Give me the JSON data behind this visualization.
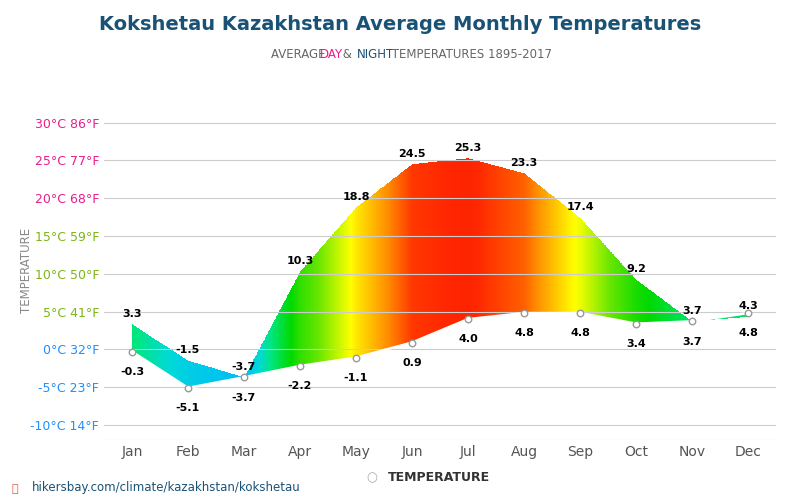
{
  "title": "Kokshetau Kazakhstan Average Monthly Temperatures",
  "ylabel": "TEMPERATURE",
  "months": [
    "Jan",
    "Feb",
    "Mar",
    "Apr",
    "May",
    "Jun",
    "Jul",
    "Aug",
    "Sep",
    "Oct",
    "Nov",
    "Dec"
  ],
  "day_temps": [
    3.3,
    -1.5,
    -3.7,
    10.3,
    18.8,
    24.5,
    25.3,
    23.3,
    17.4,
    9.2,
    3.7,
    4.3
  ],
  "night_temps": [
    -0.3,
    -5.1,
    -3.7,
    -2.2,
    -1.1,
    0.9,
    4.0,
    4.8,
    4.8,
    3.4,
    3.7,
    4.8
  ],
  "yticks_c": [
    30,
    25,
    20,
    15,
    10,
    5,
    0,
    -5,
    -10
  ],
  "yticks_f": [
    86,
    77,
    68,
    59,
    50,
    41,
    32,
    23,
    14
  ],
  "ytick_colors_warm": [
    "#e91e8c",
    "#e91e8c",
    "#e91e8c"
  ],
  "ytick_colors_green": [
    "#7cb518",
    "#7cb518",
    "#7cb518"
  ],
  "ytick_colors_blue": [
    "#1e90ff",
    "#1e90ff",
    "#1e90ff"
  ],
  "title_color": "#1a5276",
  "day_label_color": "#e91e8c",
  "night_label_color": "#1a5276",
  "background_color": "#ffffff",
  "grid_color": "#cccccc",
  "footer_text": "hikersbay.com/climate/kazakhstan/kokshetau",
  "legend_text": "TEMPERATURE",
  "subtitle_parts": [
    [
      "AVERAGE ",
      "#666666",
      false
    ],
    [
      "DAY",
      "#e91e8c",
      false
    ],
    [
      " & ",
      "#666666",
      false
    ],
    [
      "NIGHT",
      "#1a5276",
      false
    ],
    [
      " TEMPERATURES 1895-2017",
      "#666666",
      false
    ]
  ],
  "color_stops": [
    [
      -10,
      [
        0.0,
        0.4,
        1.0
      ]
    ],
    [
      -5,
      [
        0.0,
        0.7,
        1.0
      ]
    ],
    [
      0,
      [
        0.0,
        0.85,
        0.85
      ]
    ],
    [
      3,
      [
        0.0,
        0.9,
        0.5
      ]
    ],
    [
      8,
      [
        0.0,
        0.85,
        0.0
      ]
    ],
    [
      13,
      [
        0.4,
        0.9,
        0.0
      ]
    ],
    [
      18,
      [
        1.0,
        1.0,
        0.0
      ]
    ],
    [
      22,
      [
        1.0,
        0.55,
        0.0
      ]
    ],
    [
      25,
      [
        1.0,
        0.15,
        0.0
      ]
    ],
    [
      30,
      [
        0.85,
        0.0,
        0.0
      ]
    ]
  ]
}
